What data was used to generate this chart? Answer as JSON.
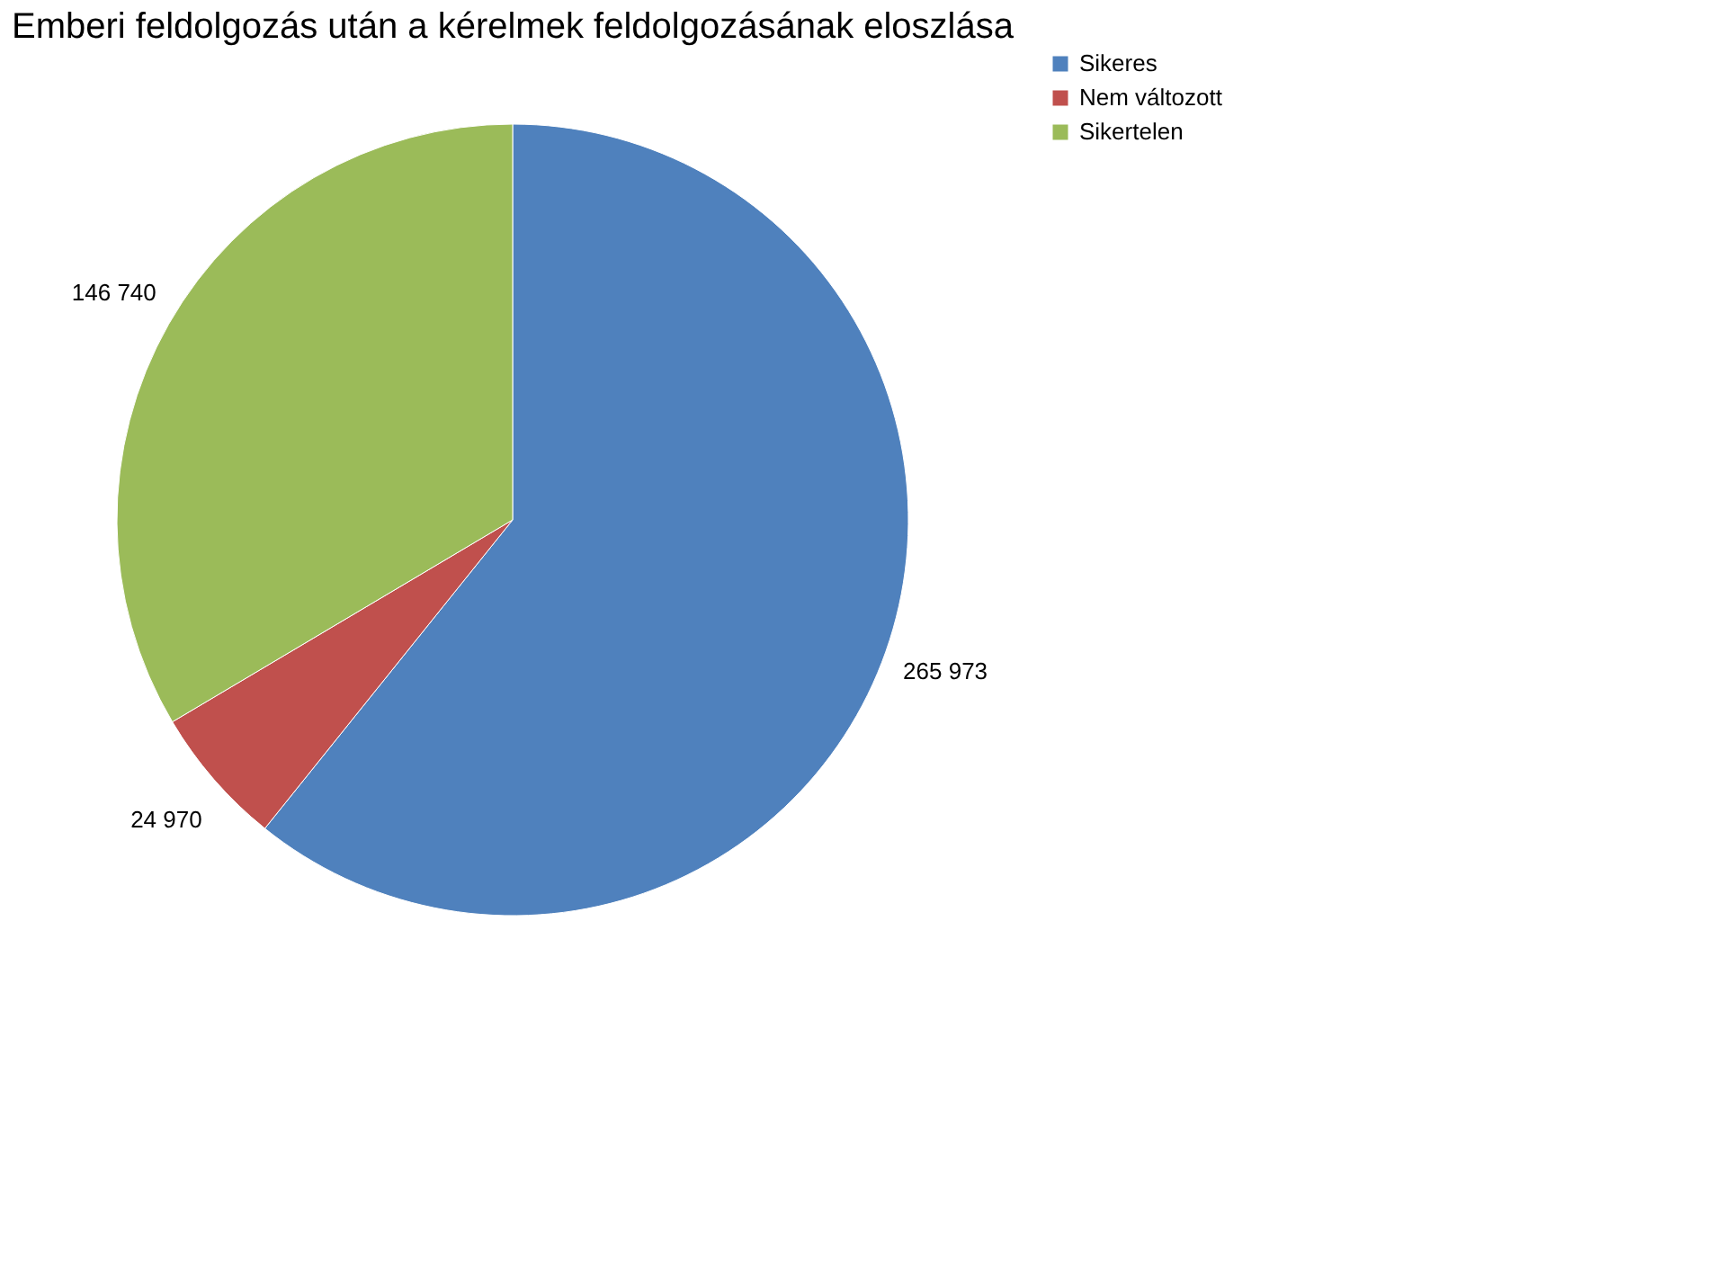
{
  "chart_data": {
    "type": "pie",
    "title": "Emberi feldolgozás után a kérelmek feldolgozásának eloszlása",
    "categories": [
      "Sikeres",
      "Nem változott",
      "Sikertelen"
    ],
    "values": [
      265973,
      24970,
      146740
    ],
    "colors": [
      "#4f81bd",
      "#c0504d",
      "#9bbb59"
    ],
    "value_labels": [
      "265 973",
      "24 970",
      "146 740"
    ],
    "legend": "right"
  }
}
